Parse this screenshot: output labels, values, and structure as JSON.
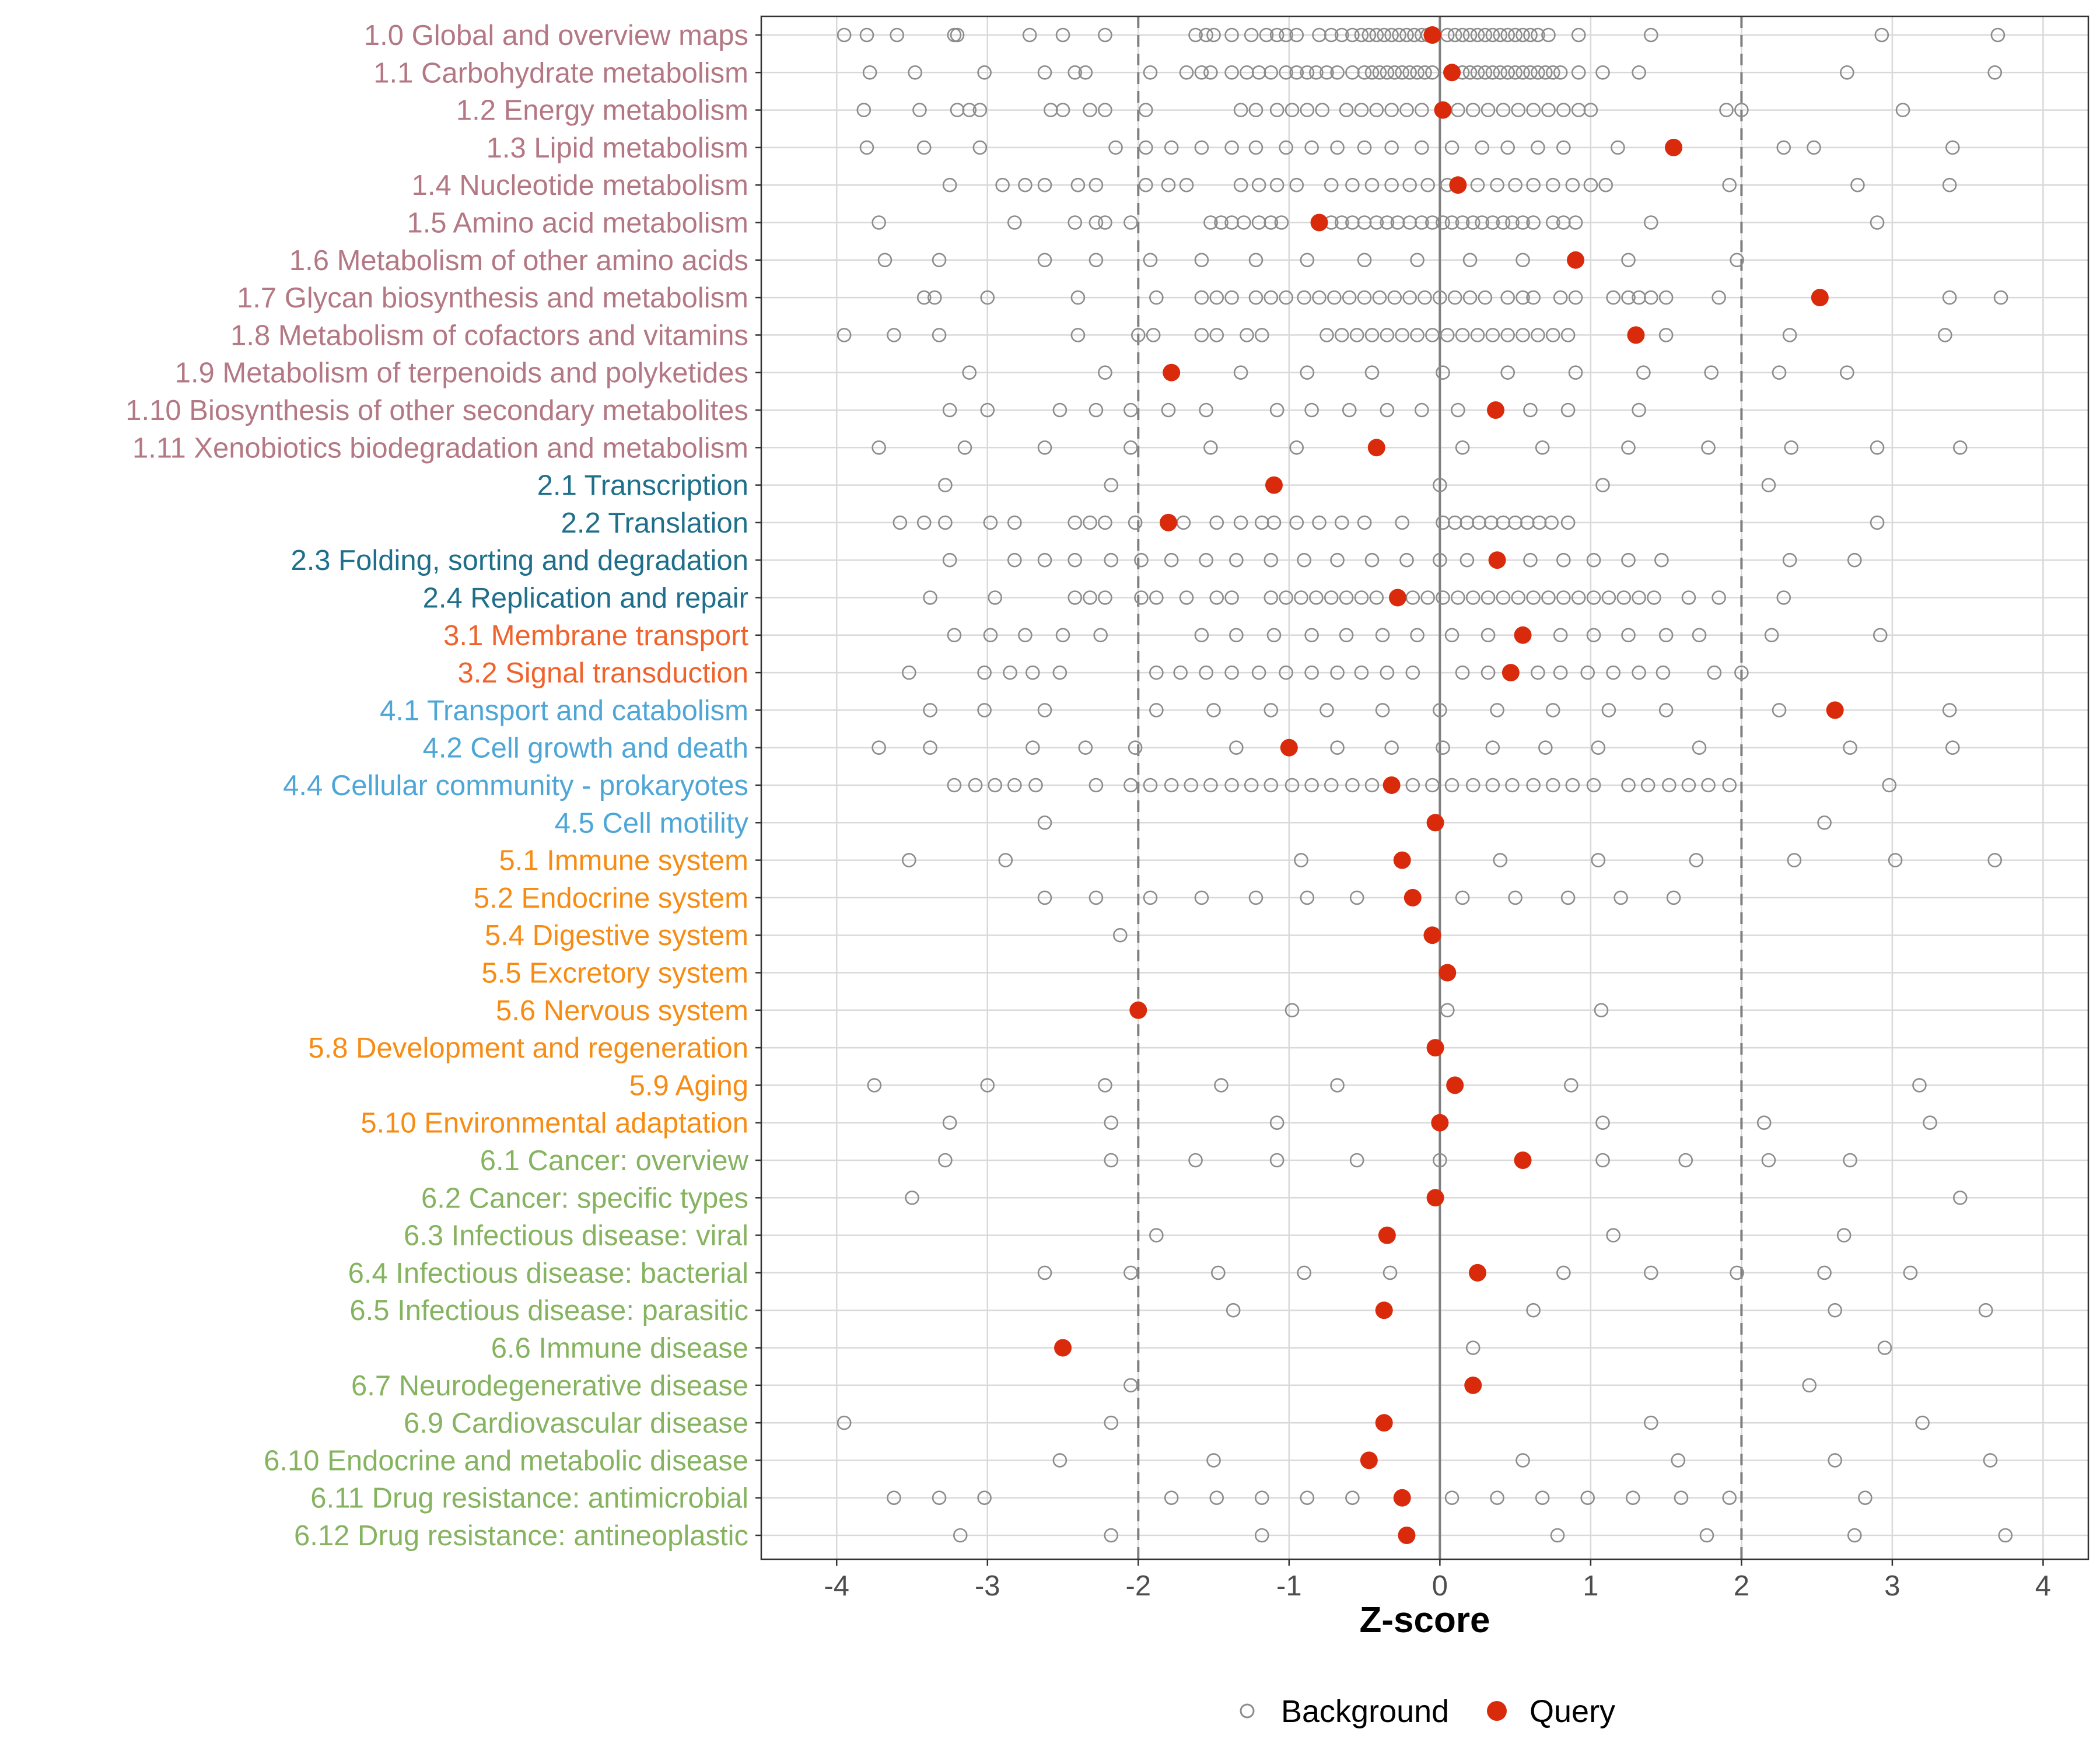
{
  "chart_data": {
    "type": "scatter",
    "xlabel": "Z-score",
    "xlim": [
      -4.5,
      4.3
    ],
    "xticks": [
      -4,
      -3,
      -2,
      -1,
      0,
      1,
      2,
      3,
      4
    ],
    "xtick_labels": [
      "-4",
      "-3",
      "-2",
      "-1",
      "0",
      "1",
      "2",
      "3",
      "4"
    ],
    "reference_lines": [
      {
        "x": -2,
        "style": "dashed"
      },
      {
        "x": 0,
        "style": "solid"
      },
      {
        "x": 2,
        "style": "dashed"
      }
    ],
    "colors": {
      "background_point": "#8c8c8c",
      "query_point": "#d92b0b",
      "grid": "#d9d9d9",
      "ref_line": "#7f7f7f"
    },
    "legend": {
      "position": "bottom",
      "entries": [
        {
          "label": "Background",
          "marker": "open-circle"
        },
        {
          "label": "Query",
          "marker": "filled-circle"
        }
      ]
    },
    "categories": [
      {
        "label": "1.0 Global and overview maps",
        "color": "#b37884",
        "query": -0.05,
        "background": [
          -3.95,
          -3.8,
          -3.6,
          -3.22,
          -3.2,
          -2.72,
          -2.5,
          -2.22,
          -1.62,
          -1.55,
          -1.5,
          -1.38,
          -1.25,
          -1.15,
          -1.08,
          -1.02,
          -0.95,
          -0.8,
          -0.72,
          -0.65,
          -0.58,
          -0.52,
          -0.47,
          -0.42,
          -0.37,
          -0.32,
          -0.27,
          -0.22,
          -0.17,
          -0.12,
          -0.08,
          0.05,
          0.1,
          0.15,
          0.2,
          0.25,
          0.3,
          0.35,
          0.4,
          0.45,
          0.5,
          0.55,
          0.6,
          0.65,
          0.72,
          0.92,
          1.4,
          2.93,
          3.7
        ]
      },
      {
        "label": "1.1 Carbohydrate metabolism",
        "color": "#b37884",
        "query": 0.08,
        "background": [
          -3.78,
          -3.48,
          -3.02,
          -2.62,
          -2.42,
          -2.35,
          -1.92,
          -1.68,
          -1.58,
          -1.52,
          -1.38,
          -1.28,
          -1.2,
          -1.12,
          -1.02,
          -0.95,
          -0.88,
          -0.82,
          -0.75,
          -0.68,
          -0.58,
          -0.5,
          -0.45,
          -0.4,
          -0.35,
          -0.3,
          -0.25,
          -0.2,
          -0.15,
          -0.1,
          -0.05,
          0.15,
          0.2,
          0.25,
          0.3,
          0.35,
          0.4,
          0.45,
          0.5,
          0.55,
          0.6,
          0.65,
          0.7,
          0.75,
          0.8,
          0.92,
          1.08,
          1.32,
          2.7,
          3.68
        ]
      },
      {
        "label": "1.2 Energy metabolism",
        "color": "#b37884",
        "query": 0.02,
        "background": [
          -3.82,
          -3.45,
          -3.2,
          -3.12,
          -3.05,
          -2.58,
          -2.5,
          -2.32,
          -2.22,
          -1.95,
          -1.32,
          -1.22,
          -1.08,
          -0.98,
          -0.88,
          -0.78,
          -0.62,
          -0.52,
          -0.42,
          -0.32,
          -0.22,
          -0.12,
          0.12,
          0.22,
          0.32,
          0.42,
          0.52,
          0.62,
          0.72,
          0.82,
          0.92,
          1.0,
          1.9,
          2.0,
          3.07
        ]
      },
      {
        "label": "1.3 Lipid metabolism",
        "color": "#b37884",
        "query": 1.55,
        "background": [
          -3.8,
          -3.42,
          -3.05,
          -2.15,
          -1.95,
          -1.78,
          -1.58,
          -1.38,
          -1.22,
          -1.02,
          -0.85,
          -0.68,
          -0.5,
          -0.32,
          -0.12,
          0.08,
          0.28,
          0.45,
          0.65,
          0.82,
          1.18,
          2.28,
          2.48,
          3.4
        ]
      },
      {
        "label": "1.4 Nucleotide metabolism",
        "color": "#b37884",
        "query": 0.12,
        "background": [
          -3.25,
          -2.9,
          -2.75,
          -2.62,
          -2.4,
          -2.28,
          -1.95,
          -1.8,
          -1.68,
          -1.32,
          -1.2,
          -1.08,
          -0.95,
          -0.72,
          -0.58,
          -0.45,
          -0.32,
          -0.2,
          -0.08,
          0.05,
          0.25,
          0.38,
          0.5,
          0.62,
          0.75,
          0.88,
          1.0,
          1.1,
          1.92,
          2.77,
          3.38
        ]
      },
      {
        "label": "1.5 Amino acid metabolism",
        "color": "#b37884",
        "query": -0.8,
        "background": [
          -3.72,
          -2.82,
          -2.42,
          -2.28,
          -2.22,
          -2.05,
          -1.52,
          -1.45,
          -1.38,
          -1.3,
          -1.2,
          -1.12,
          -1.05,
          -0.72,
          -0.65,
          -0.58,
          -0.5,
          -0.42,
          -0.35,
          -0.28,
          -0.2,
          -0.12,
          -0.05,
          0.02,
          0.08,
          0.15,
          0.22,
          0.28,
          0.35,
          0.42,
          0.48,
          0.55,
          0.62,
          0.75,
          0.82,
          0.9,
          1.4,
          2.9
        ]
      },
      {
        "label": "1.6 Metabolism of other amino acids",
        "color": "#b37884",
        "query": 0.9,
        "background": [
          -3.68,
          -3.32,
          -2.62,
          -2.28,
          -1.92,
          -1.58,
          -1.22,
          -0.88,
          -0.5,
          -0.15,
          0.2,
          0.55,
          1.25,
          1.97
        ]
      },
      {
        "label": "1.7 Glycan biosynthesis and metabolism",
        "color": "#b37884",
        "query": 2.52,
        "background": [
          -3.42,
          -3.35,
          -3.0,
          -2.4,
          -1.88,
          -1.58,
          -1.48,
          -1.38,
          -1.22,
          -1.12,
          -1.02,
          -0.9,
          -0.8,
          -0.7,
          -0.6,
          -0.5,
          -0.4,
          -0.3,
          -0.2,
          -0.1,
          0.0,
          0.1,
          0.2,
          0.3,
          0.45,
          0.55,
          0.62,
          0.8,
          0.9,
          1.15,
          1.25,
          1.32,
          1.4,
          1.5,
          1.85,
          3.38,
          3.72
        ]
      },
      {
        "label": "1.8 Metabolism of cofactors and vitamins",
        "color": "#b37884",
        "query": 1.3,
        "background": [
          -3.95,
          -3.62,
          -3.32,
          -2.4,
          -2.0,
          -1.9,
          -1.58,
          -1.48,
          -1.28,
          -1.18,
          -0.75,
          -0.65,
          -0.55,
          -0.45,
          -0.35,
          -0.25,
          -0.15,
          -0.05,
          0.05,
          0.15,
          0.25,
          0.35,
          0.45,
          0.55,
          0.65,
          0.75,
          0.85,
          1.5,
          2.32,
          3.35
        ]
      },
      {
        "label": "1.9 Metabolism of terpenoids and polyketides",
        "color": "#b37884",
        "query": -1.78,
        "background": [
          -3.12,
          -2.22,
          -1.32,
          -0.88,
          -0.45,
          0.02,
          0.45,
          0.9,
          1.35,
          1.8,
          2.25,
          2.7
        ]
      },
      {
        "label": "1.10 Biosynthesis of other secondary metabolites",
        "color": "#b37884",
        "query": 0.37,
        "background": [
          -3.25,
          -3.0,
          -2.52,
          -2.28,
          -2.05,
          -1.8,
          -1.55,
          -1.08,
          -0.85,
          -0.6,
          -0.35,
          -0.12,
          0.12,
          0.6,
          0.85,
          1.32
        ]
      },
      {
        "label": "1.11 Xenobiotics biodegradation and metabolism",
        "color": "#b37884",
        "query": -0.42,
        "background": [
          -3.72,
          -3.15,
          -2.62,
          -2.05,
          -1.52,
          -0.95,
          0.15,
          0.68,
          1.25,
          1.78,
          2.33,
          2.9,
          3.45
        ]
      },
      {
        "label": "2.1 Transcription",
        "color": "#1f6f8b",
        "query": -1.1,
        "background": [
          -3.28,
          -2.18,
          0.0,
          1.08,
          2.18
        ]
      },
      {
        "label": "2.2 Translation",
        "color": "#1f6f8b",
        "query": -1.8,
        "background": [
          -3.58,
          -3.42,
          -3.28,
          -2.98,
          -2.82,
          -2.42,
          -2.32,
          -2.22,
          -2.02,
          -1.7,
          -1.48,
          -1.32,
          -1.18,
          -1.1,
          -0.95,
          -0.8,
          -0.65,
          -0.5,
          -0.25,
          0.02,
          0.1,
          0.18,
          0.26,
          0.34,
          0.42,
          0.5,
          0.58,
          0.66,
          0.74,
          0.85,
          2.9
        ]
      },
      {
        "label": "2.3 Folding, sorting and degradation",
        "color": "#1f6f8b",
        "query": 0.38,
        "background": [
          -3.25,
          -2.82,
          -2.62,
          -2.42,
          -2.18,
          -1.98,
          -1.78,
          -1.55,
          -1.35,
          -1.12,
          -0.9,
          -0.68,
          -0.45,
          -0.22,
          0.0,
          0.18,
          0.6,
          0.82,
          1.02,
          1.25,
          1.47,
          2.32,
          2.75
        ]
      },
      {
        "label": "2.4 Replication and repair",
        "color": "#1f6f8b",
        "query": -0.28,
        "background": [
          -3.38,
          -2.95,
          -2.42,
          -2.32,
          -2.22,
          -1.98,
          -1.88,
          -1.68,
          -1.48,
          -1.38,
          -1.12,
          -1.02,
          -0.92,
          -0.82,
          -0.72,
          -0.62,
          -0.52,
          -0.42,
          -0.18,
          -0.08,
          0.02,
          0.12,
          0.22,
          0.32,
          0.42,
          0.52,
          0.62,
          0.72,
          0.82,
          0.92,
          1.02,
          1.12,
          1.22,
          1.32,
          1.42,
          1.65,
          1.85,
          2.28
        ]
      },
      {
        "label": "3.1 Membrane transport",
        "color": "#f0622c",
        "query": 0.55,
        "background": [
          -3.22,
          -2.98,
          -2.75,
          -2.5,
          -2.25,
          -1.58,
          -1.35,
          -1.1,
          -0.85,
          -0.62,
          -0.38,
          -0.15,
          0.08,
          0.32,
          0.8,
          1.02,
          1.25,
          1.5,
          1.72,
          2.2,
          2.92
        ]
      },
      {
        "label": "3.2 Signal transduction",
        "color": "#f0622c",
        "query": 0.47,
        "background": [
          -3.52,
          -3.02,
          -2.85,
          -2.7,
          -2.52,
          -1.88,
          -1.72,
          -1.55,
          -1.38,
          -1.2,
          -1.02,
          -0.85,
          -0.68,
          -0.52,
          -0.35,
          -0.18,
          0.15,
          0.32,
          0.65,
          0.8,
          0.98,
          1.15,
          1.32,
          1.48,
          1.82,
          2.0
        ]
      },
      {
        "label": "4.1 Transport and catabolism",
        "color": "#4ea6d7",
        "query": 2.62,
        "background": [
          -3.38,
          -3.02,
          -2.62,
          -1.88,
          -1.5,
          -1.12,
          -0.75,
          -0.38,
          0.0,
          0.38,
          0.75,
          1.12,
          1.5,
          2.25,
          3.38
        ]
      },
      {
        "label": "4.2 Cell growth and death",
        "color": "#4ea6d7",
        "query": -1.0,
        "background": [
          -3.72,
          -3.38,
          -2.7,
          -2.35,
          -2.02,
          -1.35,
          -0.68,
          -0.32,
          0.02,
          0.35,
          0.7,
          1.05,
          1.72,
          2.72,
          3.4
        ]
      },
      {
        "label": "4.4 Cellular community - prokaryotes",
        "color": "#4ea6d7",
        "query": -0.32,
        "background": [
          -3.22,
          -3.08,
          -2.95,
          -2.82,
          -2.68,
          -2.28,
          -2.05,
          -1.92,
          -1.78,
          -1.65,
          -1.52,
          -1.38,
          -1.25,
          -1.12,
          -0.98,
          -0.85,
          -0.72,
          -0.58,
          -0.45,
          -0.18,
          -0.05,
          0.08,
          0.22,
          0.35,
          0.48,
          0.62,
          0.75,
          0.88,
          1.02,
          1.25,
          1.38,
          1.52,
          1.65,
          1.78,
          1.92,
          2.98
        ]
      },
      {
        "label": "4.5 Cell motility",
        "color": "#4ea6d7",
        "query": -0.03,
        "background": [
          -2.62,
          2.55
        ]
      },
      {
        "label": "5.1 Immune system",
        "color": "#f68c14",
        "query": -0.25,
        "background": [
          -3.52,
          -2.88,
          -0.92,
          0.4,
          1.05,
          1.7,
          2.35,
          3.02,
          3.68
        ]
      },
      {
        "label": "5.2 Endocrine system",
        "color": "#f68c14",
        "query": -0.18,
        "background": [
          -2.62,
          -2.28,
          -1.92,
          -1.58,
          -1.22,
          -0.88,
          -0.55,
          0.15,
          0.5,
          0.85,
          1.2,
          1.55
        ]
      },
      {
        "label": "5.4 Digestive system",
        "color": "#f68c14",
        "query": -0.05,
        "background": [
          -2.12
        ]
      },
      {
        "label": "5.5 Excretory system",
        "color": "#f68c14",
        "query": 0.05,
        "background": []
      },
      {
        "label": "5.6 Nervous system",
        "color": "#f68c14",
        "query": -2.0,
        "background": [
          -0.98,
          0.05,
          1.07
        ]
      },
      {
        "label": "5.8 Development and regeneration",
        "color": "#f68c14",
        "query": -0.03,
        "background": []
      },
      {
        "label": "5.9 Aging",
        "color": "#f68c14",
        "query": 0.1,
        "background": [
          -3.75,
          -3.0,
          -2.22,
          -1.45,
          -0.68,
          0.87,
          3.18
        ]
      },
      {
        "label": "5.10 Environmental adaptation",
        "color": "#f68c14",
        "query": 0.0,
        "background": [
          -3.25,
          -2.18,
          -1.08,
          1.08,
          2.15,
          3.25
        ]
      },
      {
        "label": "6.1 Cancer: overview",
        "color": "#85b35f",
        "query": 0.55,
        "background": [
          -3.28,
          -2.18,
          -1.62,
          -1.08,
          -0.55,
          0.0,
          1.08,
          1.63,
          2.18,
          2.72
        ]
      },
      {
        "label": "6.2 Cancer: specific types",
        "color": "#85b35f",
        "query": -0.03,
        "background": [
          -3.5,
          3.45
        ]
      },
      {
        "label": "6.3 Infectious disease: viral",
        "color": "#85b35f",
        "query": -0.35,
        "background": [
          -1.88,
          1.15,
          2.68
        ]
      },
      {
        "label": "6.4 Infectious disease: bacterial",
        "color": "#85b35f",
        "query": 0.25,
        "background": [
          -2.62,
          -2.05,
          -1.47,
          -0.9,
          -0.33,
          0.82,
          1.4,
          1.97,
          2.55,
          3.12
        ]
      },
      {
        "label": "6.5 Infectious disease: parasitic",
        "color": "#85b35f",
        "query": -0.37,
        "background": [
          -1.37,
          0.62,
          2.62,
          3.62
        ]
      },
      {
        "label": "6.6 Immune disease",
        "color": "#85b35f",
        "query": -2.5,
        "background": [
          0.22,
          2.95
        ]
      },
      {
        "label": "6.7 Neurodegenerative disease",
        "color": "#85b35f",
        "query": 0.22,
        "background": [
          -2.05,
          2.45
        ]
      },
      {
        "label": "6.9 Cardiovascular disease",
        "color": "#85b35f",
        "query": -0.37,
        "background": [
          -3.95,
          -2.18,
          1.4,
          3.2
        ]
      },
      {
        "label": "6.10 Endocrine and metabolic disease",
        "color": "#85b35f",
        "query": -0.47,
        "background": [
          -2.52,
          -1.5,
          0.55,
          1.58,
          2.62,
          3.65
        ]
      },
      {
        "label": "6.11 Drug resistance: antimicrobial",
        "color": "#85b35f",
        "query": -0.25,
        "background": [
          -3.62,
          -3.32,
          -3.02,
          -1.78,
          -1.48,
          -1.18,
          -0.88,
          -0.58,
          0.08,
          0.38,
          0.68,
          0.98,
          1.28,
          1.6,
          1.92,
          2.82
        ]
      },
      {
        "label": "6.12 Drug resistance: antineoplastic",
        "color": "#85b35f",
        "query": -0.22,
        "background": [
          -3.18,
          -2.18,
          -1.18,
          0.78,
          1.77,
          2.75,
          3.75
        ]
      }
    ]
  }
}
